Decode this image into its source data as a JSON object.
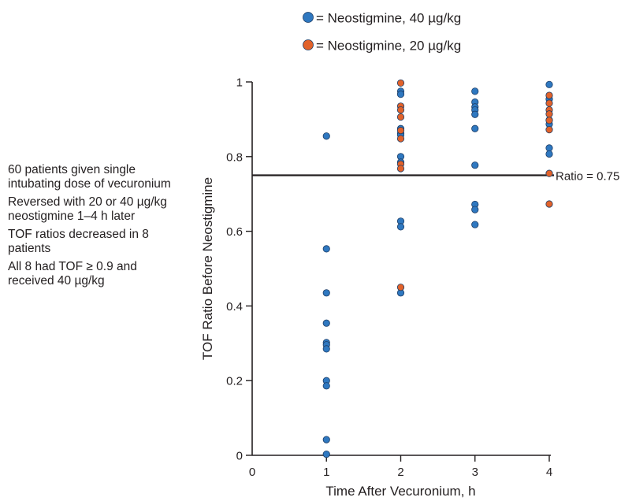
{
  "chart_data": {
    "type": "scatter",
    "xlabel": "Time After Vecuronium, h",
    "ylabel": "TOF Ratio Before Neostigmine",
    "xlim": [
      0,
      4
    ],
    "ylim": [
      0,
      1
    ],
    "x_ticks": [
      "0",
      "1",
      "2",
      "3",
      "4"
    ],
    "y_ticks": [
      "0",
      "0.2",
      "0.4",
      "0.6",
      "0.8",
      "1"
    ],
    "legend_position": "top-center",
    "reference_line": {
      "y": 0.75,
      "label": "Ratio = 0.75"
    },
    "series": [
      {
        "name": "= Neostigmine, 40 µg/kg",
        "color": "#2f78c0",
        "points": [
          [
            1,
            0.855
          ],
          [
            1,
            0.553
          ],
          [
            1,
            0.435
          ],
          [
            1,
            0.354
          ],
          [
            1,
            0.302
          ],
          [
            1,
            0.296
          ],
          [
            1,
            0.285
          ],
          [
            1,
            0.2
          ],
          [
            1,
            0.186
          ],
          [
            1,
            0.042
          ],
          [
            1,
            0.003
          ],
          [
            2,
            0.975
          ],
          [
            2,
            0.967
          ],
          [
            2,
            0.875
          ],
          [
            2,
            0.862
          ],
          [
            2,
            0.858
          ],
          [
            2,
            0.8
          ],
          [
            2,
            0.785
          ],
          [
            2,
            0.627
          ],
          [
            2,
            0.612
          ],
          [
            2,
            0.435
          ],
          [
            3,
            0.975
          ],
          [
            3,
            0.946
          ],
          [
            3,
            0.933
          ],
          [
            3,
            0.925
          ],
          [
            3,
            0.913
          ],
          [
            3,
            0.875
          ],
          [
            3,
            0.777
          ],
          [
            3,
            0.672
          ],
          [
            3,
            0.658
          ],
          [
            3,
            0.618
          ],
          [
            4,
            0.993
          ],
          [
            4,
            0.954
          ],
          [
            4,
            0.898
          ],
          [
            4,
            0.887
          ],
          [
            4,
            0.823
          ],
          [
            4,
            0.807
          ]
        ]
      },
      {
        "name": "= Neostigmine, 20 µg/kg",
        "color": "#e2622a",
        "points": [
          [
            2,
            0.997
          ],
          [
            2,
            0.935
          ],
          [
            2,
            0.925
          ],
          [
            2,
            0.906
          ],
          [
            2,
            0.87
          ],
          [
            2,
            0.848
          ],
          [
            2,
            0.78
          ],
          [
            2,
            0.768
          ],
          [
            2,
            0.45
          ],
          [
            4,
            0.964
          ],
          [
            4,
            0.943
          ],
          [
            4,
            0.925
          ],
          [
            4,
            0.914
          ],
          [
            4,
            0.897
          ],
          [
            4,
            0.872
          ],
          [
            4,
            0.755
          ],
          [
            4,
            0.673
          ]
        ]
      }
    ]
  },
  "notes": [
    "60 patients given single intubating dose of vecuronium",
    "Reversed with 20 or 40 µg/kg neostigmine 1–4 h later",
    "TOF ratios decreased in 8 patients",
    "All 8 had TOF ≥ 0.9 and received 40 µg/kg"
  ]
}
